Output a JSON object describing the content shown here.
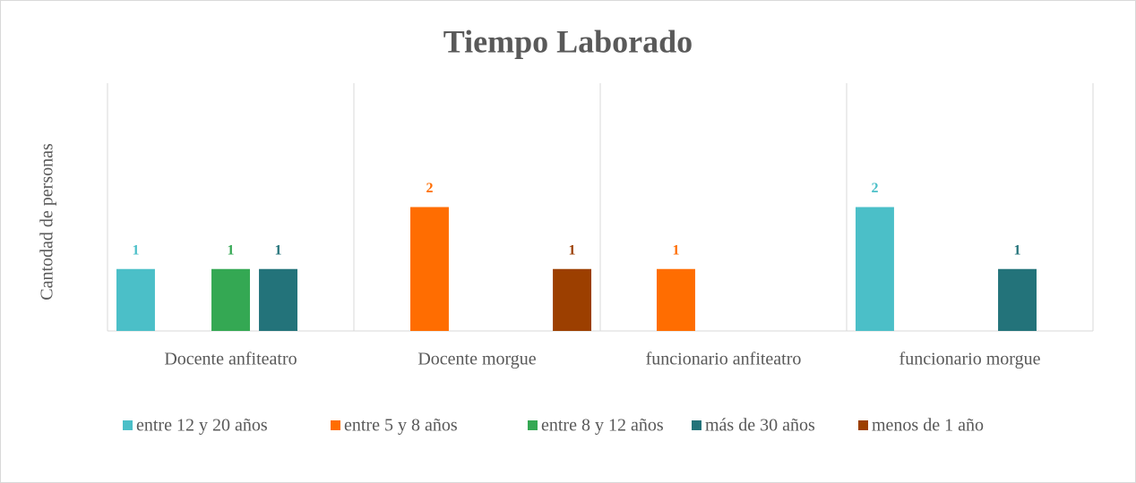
{
  "chart_data": {
    "type": "bar",
    "title": "Tiempo Laborado",
    "y_label": "Cantodad de personas",
    "categories": [
      "Docente anfiteatro",
      "Docente morgue",
      "funcionario anfiteatro",
      "funcionario morgue"
    ],
    "series": [
      {
        "name": "entre 12 y 20 años",
        "color": "#4bbfc8",
        "values": [
          1,
          null,
          null,
          2
        ]
      },
      {
        "name": "entre 5 y 8 años",
        "color": "#ff6d01",
        "values": [
          null,
          2,
          1,
          null
        ]
      },
      {
        "name": "entre 8 y 12 años",
        "color": "#34a853",
        "values": [
          1,
          null,
          null,
          null
        ]
      },
      {
        "name": "más de 30 años",
        "color": "#23737a",
        "values": [
          1,
          null,
          null,
          1
        ]
      },
      {
        "name": "menos de 1 año",
        "color": "#9c3f00",
        "values": [
          null,
          1,
          null,
          null
        ]
      }
    ],
    "ylim": [
      0,
      4
    ],
    "legend": "bottom"
  }
}
